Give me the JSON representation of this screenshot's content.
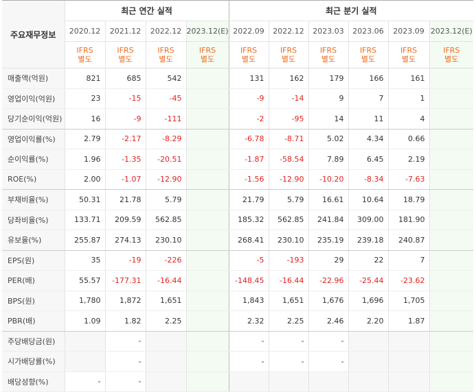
{
  "header": {
    "label": "주요재무정보",
    "annual_title": "최근 연간 실적",
    "quarterly_title": "최근 분기 실적"
  },
  "periods": [
    {
      "label": "2020.12",
      "est": false
    },
    {
      "label": "2021.12",
      "est": false
    },
    {
      "label": "2022.12",
      "est": false
    },
    {
      "label": "2023.12(E)",
      "est": true
    },
    {
      "label": "2022.09",
      "est": false
    },
    {
      "label": "2022.12",
      "est": false
    },
    {
      "label": "2023.03",
      "est": false
    },
    {
      "label": "2023.06",
      "est": false
    },
    {
      "label": "2023.09",
      "est": false
    },
    {
      "label": "2023.12(E)",
      "est": true
    }
  ],
  "basis": {
    "line1": "IFRS",
    "line2": "별도"
  },
  "rows": [
    {
      "label": "매출액(억원)",
      "values": [
        "821",
        "685",
        "542",
        "",
        "131",
        "162",
        "179",
        "166",
        "161",
        ""
      ]
    },
    {
      "label": "영업이익(억원)",
      "values": [
        "23",
        "-15",
        "-45",
        "",
        "-9",
        "-14",
        "9",
        "7",
        "1",
        ""
      ]
    },
    {
      "label": "당기순이익(억원)",
      "values": [
        "16",
        "-9",
        "-111",
        "",
        "-2",
        "-95",
        "14",
        "11",
        "4",
        ""
      ]
    },
    {
      "label": "영업이익률(%)",
      "values": [
        "2.79",
        "-2.17",
        "-8.29",
        "",
        "-6.78",
        "-8.71",
        "5.02",
        "4.34",
        "0.66",
        ""
      ]
    },
    {
      "label": "순이익률(%)",
      "values": [
        "1.96",
        "-1.35",
        "-20.51",
        "",
        "-1.87",
        "-58.54",
        "7.89",
        "6.45",
        "2.19",
        ""
      ]
    },
    {
      "label": "ROE(%)",
      "values": [
        "2.00",
        "-1.07",
        "-12.90",
        "",
        "-1.56",
        "-12.90",
        "-10.20",
        "-8.34",
        "-7.63",
        ""
      ]
    },
    {
      "label": "부채비율(%)",
      "values": [
        "50.31",
        "21.78",
        "5.79",
        "",
        "21.79",
        "5.79",
        "16.61",
        "10.64",
        "18.79",
        ""
      ]
    },
    {
      "label": "당좌비율(%)",
      "values": [
        "133.71",
        "209.59",
        "562.85",
        "",
        "185.32",
        "562.85",
        "241.84",
        "309.00",
        "181.90",
        ""
      ]
    },
    {
      "label": "유보율(%)",
      "values": [
        "255.87",
        "274.13",
        "230.10",
        "",
        "268.41",
        "230.10",
        "235.19",
        "239.18",
        "240.87",
        ""
      ]
    },
    {
      "label": "EPS(원)",
      "values": [
        "35",
        "-19",
        "-226",
        "",
        "-5",
        "-193",
        "29",
        "22",
        "7",
        ""
      ]
    },
    {
      "label": "PER(배)",
      "values": [
        "55.57",
        "-177.31",
        "-16.44",
        "",
        "-148.45",
        "-16.44",
        "-22.96",
        "-25.44",
        "-23.62",
        ""
      ]
    },
    {
      "label": "BPS(원)",
      "values": [
        "1,780",
        "1,872",
        "1,651",
        "",
        "1,843",
        "1,651",
        "1,676",
        "1,696",
        "1,705",
        ""
      ]
    },
    {
      "label": "PBR(배)",
      "values": [
        "1.09",
        "1.82",
        "2.25",
        "",
        "2.32",
        "2.25",
        "2.46",
        "2.20",
        "1.87",
        ""
      ]
    },
    {
      "label": "주당배당금(원)",
      "values": [
        "",
        "-",
        "",
        "",
        "-",
        "-",
        "-",
        "",
        "",
        " "
      ]
    },
    {
      "label": "시가배당률(%)",
      "values": [
        "",
        "-",
        "",
        "",
        "-",
        "-",
        "-",
        "",
        "",
        ""
      ]
    },
    {
      "label": "배당성향(%)",
      "values": [
        "-",
        "-",
        "",
        "",
        "",
        "",
        "",
        "",
        "",
        ""
      ]
    }
  ],
  "group_ends": [
    2,
    5,
    8,
    12
  ],
  "gray_cells": {
    "13": [
      0,
      2,
      3,
      7,
      8,
      9
    ],
    "14": [
      0,
      2,
      3,
      7,
      8,
      9
    ],
    "15": [
      2,
      3,
      4,
      5,
      6,
      7,
      8,
      9
    ]
  }
}
